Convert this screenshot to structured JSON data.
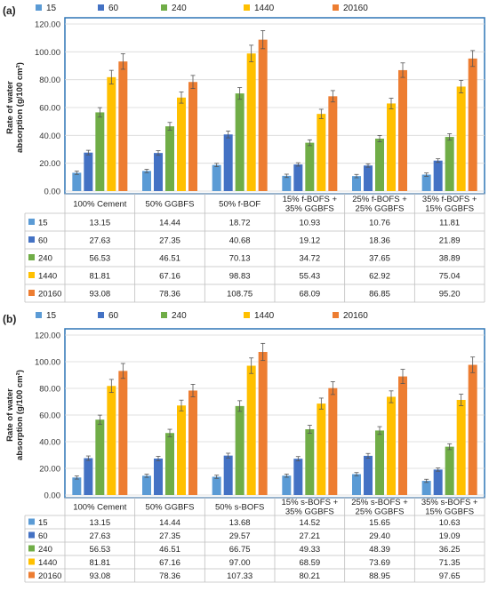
{
  "colors": {
    "s15": "#5B9BD5",
    "s60": "#4472C4",
    "s240": "#70AD47",
    "s1440": "#FFC000",
    "s20160": "#ED7D31",
    "plot_border": "#2E75B6"
  },
  "chart_data": [
    {
      "type": "bar",
      "panel_label": "(a)",
      "ylabel": "Rate of water absorption (g/100 cm²)",
      "ylim": [
        0,
        120
      ],
      "yticks": [
        "0.00",
        "20.00",
        "40.00",
        "60.00",
        "80.00",
        "100.00",
        "120.00"
      ],
      "grid": true,
      "legend_position": "top",
      "error_bars": true,
      "categories": [
        "100% Cement",
        "50% GGBFS",
        "50% f-BOF",
        "15% f-BOFS + 35% GGBFS",
        "25% f-BOFS + 25% GGBFS",
        "35% f-BOFS + 15% GGBFS"
      ],
      "series": [
        {
          "name": "15",
          "values": [
            13.15,
            14.44,
            18.72,
            10.93,
            10.76,
            11.81
          ],
          "labels": [
            "13.15",
            "14.44",
            "18.72",
            "10.93",
            "10.76",
            "11.81"
          ]
        },
        {
          "name": "60",
          "values": [
            27.63,
            27.35,
            40.68,
            19.12,
            18.36,
            21.89
          ],
          "labels": [
            "27.63",
            "27.35",
            "40.68",
            "19.12",
            "18.36",
            "21.89"
          ]
        },
        {
          "name": "240",
          "values": [
            56.53,
            46.51,
            70.13,
            34.72,
            37.65,
            38.89
          ],
          "labels": [
            "56.53",
            "46.51",
            "70.13",
            "34.72",
            "37.65",
            "38.89"
          ]
        },
        {
          "name": "1440",
          "values": [
            81.81,
            67.16,
            98.83,
            55.43,
            62.92,
            75.04
          ],
          "labels": [
            "81.81",
            "67.16",
            "98.83",
            "55.43",
            "62.92",
            "75.04"
          ]
        },
        {
          "name": "20160",
          "values": [
            93.08,
            78.36,
            108.75,
            68.09,
            86.85,
            95.2
          ],
          "labels": [
            "93.08",
            "78.36",
            "108.75",
            "68.09",
            "86.85",
            "95.20"
          ]
        }
      ]
    },
    {
      "type": "bar",
      "panel_label": "(b)",
      "ylabel": "Rate of water absorption (g/100 cm²)",
      "ylim": [
        0,
        120
      ],
      "yticks": [
        "0.00",
        "20.00",
        "40.00",
        "60.00",
        "80.00",
        "100.00",
        "120.00"
      ],
      "grid": true,
      "legend_position": "top",
      "error_bars": true,
      "categories": [
        "100% Cement",
        "50% GGBFS",
        "50% s-BOFS",
        "15% s-BOFS + 35% GGBFS",
        "25% s-BOFS + 25% GGBFS",
        "35% s-BOFS + 15% GGBFS"
      ],
      "series": [
        {
          "name": "15",
          "values": [
            13.15,
            14.44,
            13.68,
            14.52,
            15.65,
            10.63
          ],
          "labels": [
            "13.15",
            "14.44",
            "13.68",
            "14.52",
            "15.65",
            "10.63"
          ]
        },
        {
          "name": "60",
          "values": [
            27.63,
            27.35,
            29.57,
            27.21,
            29.4,
            19.09
          ],
          "labels": [
            "27.63",
            "27.35",
            "29.57",
            "27.21",
            "29.40",
            "19.09"
          ]
        },
        {
          "name": "240",
          "values": [
            56.53,
            46.51,
            66.75,
            49.33,
            48.39,
            36.25
          ],
          "labels": [
            "56.53",
            "46.51",
            "66.75",
            "49.33",
            "48.39",
            "36.25"
          ]
        },
        {
          "name": "1440",
          "values": [
            81.81,
            67.16,
            97.0,
            68.59,
            73.69,
            71.35
          ],
          "labels": [
            "81.81",
            "67.16",
            "97.00",
            "68.59",
            "73.69",
            "71.35"
          ]
        },
        {
          "name": "20160",
          "values": [
            93.08,
            78.36,
            107.33,
            80.21,
            88.95,
            97.65
          ],
          "labels": [
            "93.08",
            "78.36",
            "107.33",
            "80.21",
            "88.95",
            "97.65"
          ]
        }
      ]
    }
  ]
}
